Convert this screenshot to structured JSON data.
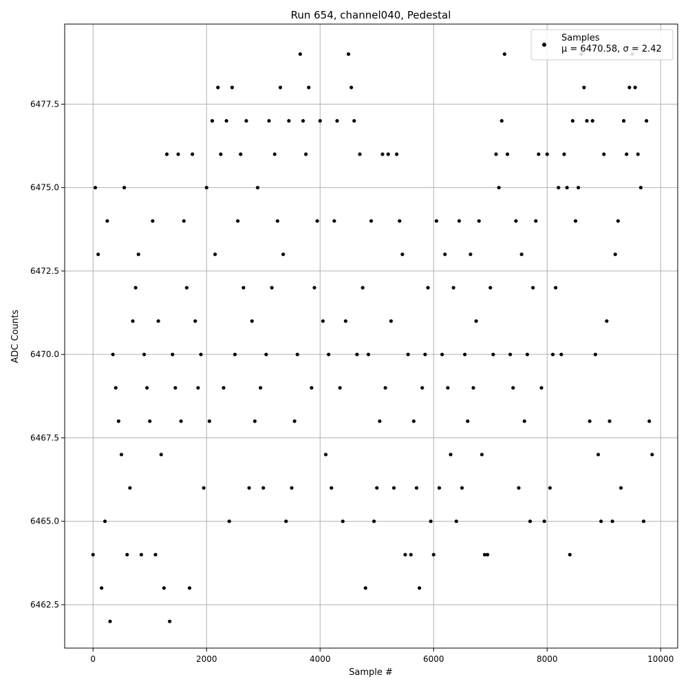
{
  "chart_data": {
    "type": "scatter",
    "title": "Run 654, channel040, Pedestal",
    "xlabel": "Sample #",
    "ylabel": "ADC Counts",
    "xlim": [
      -500,
      10300
    ],
    "ylim": [
      6461.2,
      6479.9
    ],
    "xticks": [
      0,
      2000,
      4000,
      6000,
      8000,
      10000
    ],
    "xtick_labels": [
      "0",
      "2000",
      "4000",
      "6000",
      "8000",
      "10000"
    ],
    "yticks": [
      6462.5,
      6465.0,
      6467.5,
      6470.0,
      6472.5,
      6475.0,
      6477.5
    ],
    "ytick_labels": [
      "6462.5",
      "6465.0",
      "6467.5",
      "6470.0",
      "6472.5",
      "6475.0",
      "6477.5"
    ],
    "grid": true,
    "legend": {
      "placement": "top-right",
      "entries": [
        "Samples"
      ],
      "stats_label": "μ = 6470.58, σ = 2.42"
    },
    "marker_color": "#000000",
    "series": [
      {
        "name": "Samples",
        "x": [
          0,
          40,
          90,
          150,
          210,
          250,
          300,
          350,
          400,
          450,
          500,
          550,
          600,
          650,
          700,
          750,
          800,
          850,
          900,
          950,
          1000,
          1050,
          1100,
          1150,
          1200,
          1250,
          1300,
          1350,
          1400,
          1450,
          1500,
          1550,
          1600,
          1650,
          1700,
          1750,
          1800,
          1850,
          1900,
          1950,
          2000,
          2050,
          2100,
          2150,
          2200,
          2250,
          2300,
          2350,
          2400,
          2450,
          2500,
          2550,
          2600,
          2650,
          2700,
          2750,
          2800,
          2850,
          2900,
          2950,
          3000,
          3050,
          3100,
          3150,
          3200,
          3250,
          3300,
          3350,
          3400,
          3450,
          3500,
          3550,
          3600,
          3650,
          3700,
          3750,
          3800,
          3850,
          3900,
          3950,
          4000,
          4050,
          4100,
          4150,
          4200,
          4250,
          4300,
          4350,
          4400,
          4450,
          4500,
          4550,
          4600,
          4650,
          4700,
          4750,
          4800,
          4850,
          4900,
          4950,
          5000,
          5050,
          5100,
          5150,
          5200,
          5250,
          5300,
          5350,
          5400,
          5450,
          5500,
          5550,
          5600,
          5650,
          5700,
          5750,
          5800,
          5850,
          5900,
          5950,
          6000,
          6050,
          6100,
          6150,
          6200,
          6250,
          6300,
          6350,
          6400,
          6450,
          6500,
          6550,
          6600,
          6650,
          6700,
          6750,
          6800,
          6850,
          6900,
          6950,
          7000,
          7050,
          7100,
          7150,
          7200,
          7250,
          7300,
          7350,
          7400,
          7450,
          7500,
          7550,
          7600,
          7650,
          7700,
          7750,
          7800,
          7850,
          7900,
          7950,
          8000,
          8050,
          8100,
          8150,
          8200,
          8250,
          8300,
          8350,
          8400,
          8450,
          8500,
          8550,
          8600,
          8650,
          8700,
          8750,
          8800,
          8850,
          8900,
          8950,
          9000,
          9050,
          9100,
          9150,
          9200,
          9250,
          9300,
          9350,
          9400,
          9450,
          9500,
          9550,
          9600,
          9650,
          9700,
          9750,
          9800,
          9850
        ],
        "y": [
          6464,
          6475,
          6473,
          6463,
          6465,
          6474,
          6462,
          6470,
          6469,
          6468,
          6467,
          6475,
          6464,
          6466,
          6471,
          6472,
          6473,
          6464,
          6470,
          6469,
          6468,
          6474,
          6464,
          6471,
          6467,
          6463,
          6476,
          6462,
          6470,
          6469,
          6476,
          6468,
          6474,
          6472,
          6463,
          6476,
          6471,
          6469,
          6470,
          6466,
          6475,
          6468,
          6477,
          6473,
          6478,
          6476,
          6469,
          6477,
          6465,
          6478,
          6470,
          6474,
          6476,
          6472,
          6477,
          6466,
          6471,
          6468,
          6475,
          6469,
          6466,
          6470,
          6477,
          6472,
          6476,
          6474,
          6478,
          6473,
          6465,
          6477,
          6466,
          6468,
          6470,
          6479,
          6477,
          6476,
          6478,
          6469,
          6472,
          6474,
          6477,
          6471,
          6467,
          6470,
          6466,
          6474,
          6477,
          6469,
          6465,
          6471,
          6479,
          6478,
          6477,
          6470,
          6476,
          6472,
          6463,
          6470,
          6474,
          6465,
          6466,
          6468,
          6476,
          6469,
          6476,
          6471,
          6466,
          6476,
          6474,
          6473,
          6464,
          6470,
          6464,
          6468,
          6466,
          6463,
          6469,
          6470,
          6472,
          6465,
          6464,
          6474,
          6466,
          6470,
          6473,
          6469,
          6467,
          6472,
          6465,
          6474,
          6466,
          6470,
          6468,
          6473,
          6469,
          6471,
          6474,
          6467,
          6464,
          6464,
          6472,
          6470,
          6476,
          6475,
          6477,
          6479,
          6476,
          6470,
          6469,
          6474,
          6466,
          6473,
          6468,
          6470,
          6465,
          6472,
          6474,
          6476,
          6469,
          6465,
          6476,
          6466,
          6470,
          6472,
          6475,
          6470,
          6476,
          6475,
          6464,
          6477,
          6474,
          6475,
          6479,
          6478,
          6477,
          6468,
          6477,
          6470,
          6467,
          6465,
          6476,
          6471,
          6468,
          6465,
          6473,
          6474,
          6466,
          6477,
          6476,
          6478,
          6479,
          6478,
          6476,
          6475,
          6465,
          6477,
          6468,
          6467
        ]
      }
    ]
  }
}
